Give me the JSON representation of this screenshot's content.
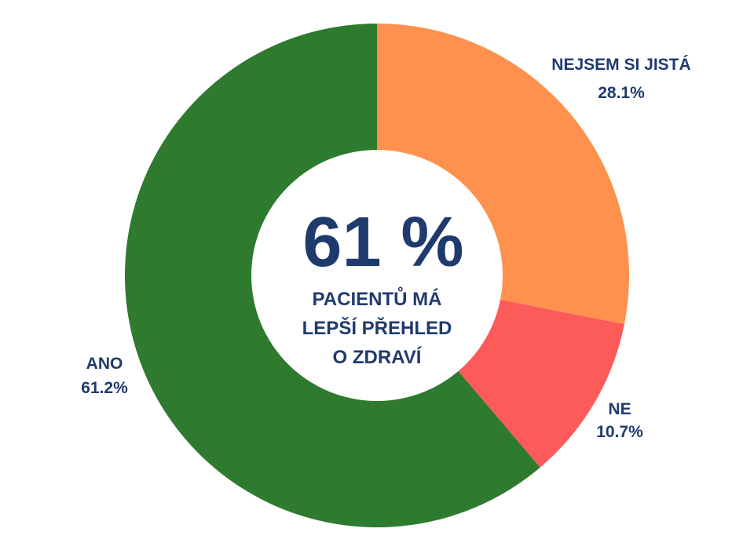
{
  "chart_data": {
    "type": "pie",
    "variant": "donut",
    "slices": [
      {
        "label": "NEJSEM SI JISTÁ",
        "value": 28.1,
        "value_label": "28.1%",
        "color": "#fd914d"
      },
      {
        "label": "NE",
        "value": 10.7,
        "value_label": "10.7%",
        "color": "#fd5a5a"
      },
      {
        "label": "ANO",
        "value": 61.2,
        "value_label": "61.2%",
        "color": "#2e7a2e"
      }
    ],
    "center": {
      "value": "61 %",
      "lines": [
        "PACIENTŮ MÁ",
        "LEPŠÍ PŘEHLED",
        "O ZDRAVÍ"
      ]
    },
    "text_color": "#1f3b6e",
    "start": "top",
    "direction": "clockwise"
  }
}
